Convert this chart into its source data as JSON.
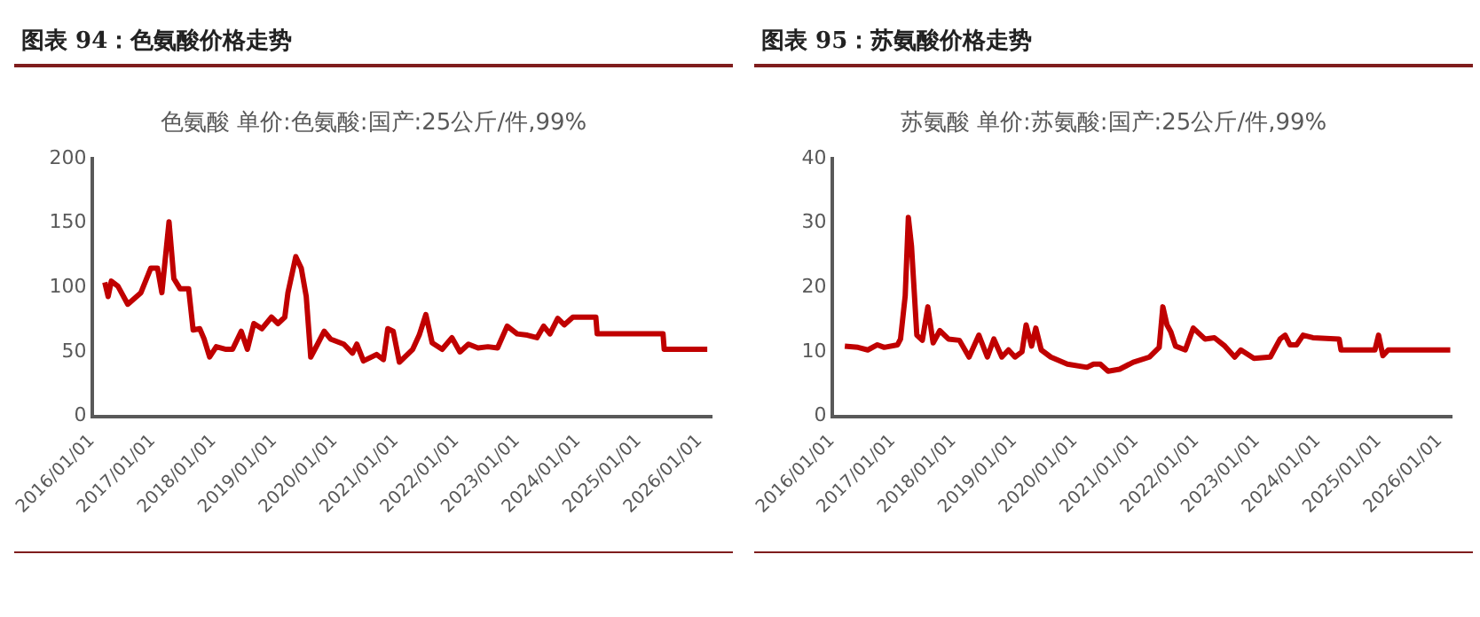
{
  "chart_data": [
    {
      "type": "line",
      "title": "图表 94：色氨酸价格走势",
      "subtitle": "色氨酸 单价:色氨酸:国产:25公斤/件,99%",
      "series": [
        {
          "color": "#c00000",
          "x": [
            "2016-03-19",
            "2016-04-08",
            "2016-04-27",
            "2016-06-06",
            "2016-08-04",
            "2016-10-22",
            "2016-12-20",
            "2017-01-30",
            "2017-02-25",
            "2017-04-09",
            "2017-05-08",
            "2017-06-15",
            "2017-08-05",
            "2017-09-01",
            "2017-10-11",
            "2017-11-06",
            "2017-12-09",
            "2018-01-18",
            "2018-03-18",
            "2018-04-26",
            "2018-06-17",
            "2018-07-24",
            "2018-09-01",
            "2018-10-19",
            "2018-12-16",
            "2019-01-24",
            "2019-03-06",
            "2019-03-25",
            "2019-05-11",
            "2019-06-13",
            "2019-07-13",
            "2019-08-09",
            "2019-09-19",
            "2019-10-29",
            "2019-12-06",
            "2020-02-24",
            "2020-04-16",
            "2020-05-12",
            "2020-06-21",
            "2020-09-08",
            "2020-10-19",
            "2020-11-14",
            "2020-12-17",
            "2021-01-23",
            "2021-04-13",
            "2021-05-22",
            "2021-07-01",
            "2021-08-08",
            "2021-10-07",
            "2021-12-05",
            "2022-01-22",
            "2022-03-14",
            "2022-05-11",
            "2022-07-09",
            "2022-09-05",
            "2022-11-02",
            "2023-01-01",
            "2023-03-03",
            "2023-04-30",
            "2023-06-09",
            "2023-07-17",
            "2023-09-02",
            "2023-10-11",
            "2023-12-02",
            "2024-04-18",
            "2024-04-26",
            "2025-05-27",
            "2025-06-03",
            "2026-02-17"
          ],
          "values": [
            104,
            93,
            105,
            101,
            87,
            96,
            115,
            115,
            96,
            151,
            107,
            99,
            99,
            67,
            68,
            60,
            46,
            54,
            52,
            52,
            66,
            52,
            72,
            68,
            77,
            72,
            77,
            96,
            124,
            115,
            93,
            46,
            56,
            66,
            60,
            56,
            49,
            56,
            43,
            48,
            44,
            68,
            66,
            42,
            52,
            63,
            79,
            57,
            52,
            61,
            50,
            56,
            53,
            54,
            53,
            70,
            64,
            63,
            61,
            70,
            64,
            76,
            71,
            77,
            77,
            64,
            64,
            52,
            52
          ]
        }
      ],
      "xlim": [
        "2016-01-01",
        "2026-03-15"
      ],
      "xticks": [
        {
          "value": "2016-01-01",
          "label": "2016/01/01"
        },
        {
          "value": "2017-01-01",
          "label": "2017/01/01"
        },
        {
          "value": "2018-01-01",
          "label": "2018/01/01"
        },
        {
          "value": "2019-01-01",
          "label": "2019/01/01"
        },
        {
          "value": "2020-01-01",
          "label": "2020/01/01"
        },
        {
          "value": "2021-01-01",
          "label": "2021/01/01"
        },
        {
          "value": "2022-01-01",
          "label": "2022/01/01"
        },
        {
          "value": "2023-01-01",
          "label": "2023/01/01"
        },
        {
          "value": "2024-01-01",
          "label": "2024/01/01"
        },
        {
          "value": "2025-01-01",
          "label": "2025/01/01"
        },
        {
          "value": "2026-01-01",
          "label": "2026/01/01"
        }
      ],
      "ylim": [
        0,
        200
      ],
      "yticks": [
        0,
        50,
        100,
        150,
        200
      ]
    },
    {
      "type": "line",
      "title": "图表 95：苏氨酸价格走势",
      "subtitle": "苏氨酸 单价:苏氨酸:国产:25公斤/件,99%",
      "series": [
        {
          "color": "#c00000",
          "x": [
            "2016-03-19",
            "2016-06-06",
            "2016-08-04",
            "2016-10-01",
            "2016-11-11",
            "2017-01-30",
            "2017-02-17",
            "2017-03-17",
            "2017-04-05",
            "2017-04-24",
            "2017-05-26",
            "2017-06-28",
            "2017-07-31",
            "2017-09-01",
            "2017-10-11",
            "2017-12-02",
            "2018-02-06",
            "2018-04-05",
            "2018-06-03",
            "2018-07-24",
            "2018-09-01",
            "2018-10-19",
            "2018-11-28",
            "2019-01-06",
            "2019-02-17",
            "2019-03-14",
            "2019-04-16",
            "2019-05-11",
            "2019-06-13",
            "2019-08-09",
            "2019-11-17",
            "2020-03-14",
            "2020-04-22",
            "2020-06-02",
            "2020-07-19",
            "2020-09-26",
            "2020-12-17",
            "2021-03-25",
            "2021-05-22",
            "2021-06-13",
            "2021-07-08",
            "2021-07-31",
            "2021-08-28",
            "2021-10-26",
            "2021-12-13",
            "2022-02-21",
            "2022-04-19",
            "2022-06-21",
            "2022-08-19",
            "2022-09-25",
            "2022-12-13",
            "2023-03-21",
            "2023-05-19",
            "2023-06-18",
            "2023-07-17",
            "2023-08-26",
            "2023-10-04",
            "2023-12-02",
            "2024-05-08",
            "2024-05-19",
            "2024-12-09",
            "2024-12-31",
            "2025-01-26",
            "2025-02-27",
            "2026-03-07"
          ],
          "values": [
            10.9,
            10.7,
            10.3,
            11.1,
            10.7,
            11.1,
            12,
            18.7,
            30.9,
            26.4,
            12.6,
            11.8,
            17,
            11.4,
            13.3,
            12,
            11.8,
            9.2,
            12.6,
            9.2,
            12,
            9.2,
            10.3,
            9.2,
            10,
            14.2,
            10.9,
            13.7,
            10.3,
            9.2,
            8.1,
            7.6,
            8.1,
            8.1,
            7,
            7.3,
            8.4,
            9.2,
            10.7,
            17,
            14.2,
            13.1,
            10.9,
            10.3,
            13.7,
            12,
            12.2,
            10.9,
            9.2,
            10.3,
            9,
            9.2,
            12,
            12.6,
            11.1,
            11.1,
            12.6,
            12.2,
            12,
            10.3,
            10.3,
            12.6,
            9.4,
            10.3,
            10.3
          ]
        }
      ],
      "xlim": [
        "2016-01-01",
        "2026-03-15"
      ],
      "xticks": [
        {
          "value": "2016-01-01",
          "label": "2016/01/01"
        },
        {
          "value": "2017-01-01",
          "label": "2017/01/01"
        },
        {
          "value": "2018-01-01",
          "label": "2018/01/01"
        },
        {
          "value": "2019-01-01",
          "label": "2019/01/01"
        },
        {
          "value": "2020-01-01",
          "label": "2020/01/01"
        },
        {
          "value": "2021-01-01",
          "label": "2021/01/01"
        },
        {
          "value": "2022-01-01",
          "label": "2022/01/01"
        },
        {
          "value": "2023-01-01",
          "label": "2023/01/01"
        },
        {
          "value": "2024-01-01",
          "label": "2024/01/01"
        },
        {
          "value": "2025-01-01",
          "label": "2025/01/01"
        },
        {
          "value": "2026-01-01",
          "label": "2026/01/01"
        }
      ],
      "ylim": [
        0,
        40
      ],
      "yticks": [
        0,
        10,
        20,
        30,
        40
      ]
    }
  ]
}
